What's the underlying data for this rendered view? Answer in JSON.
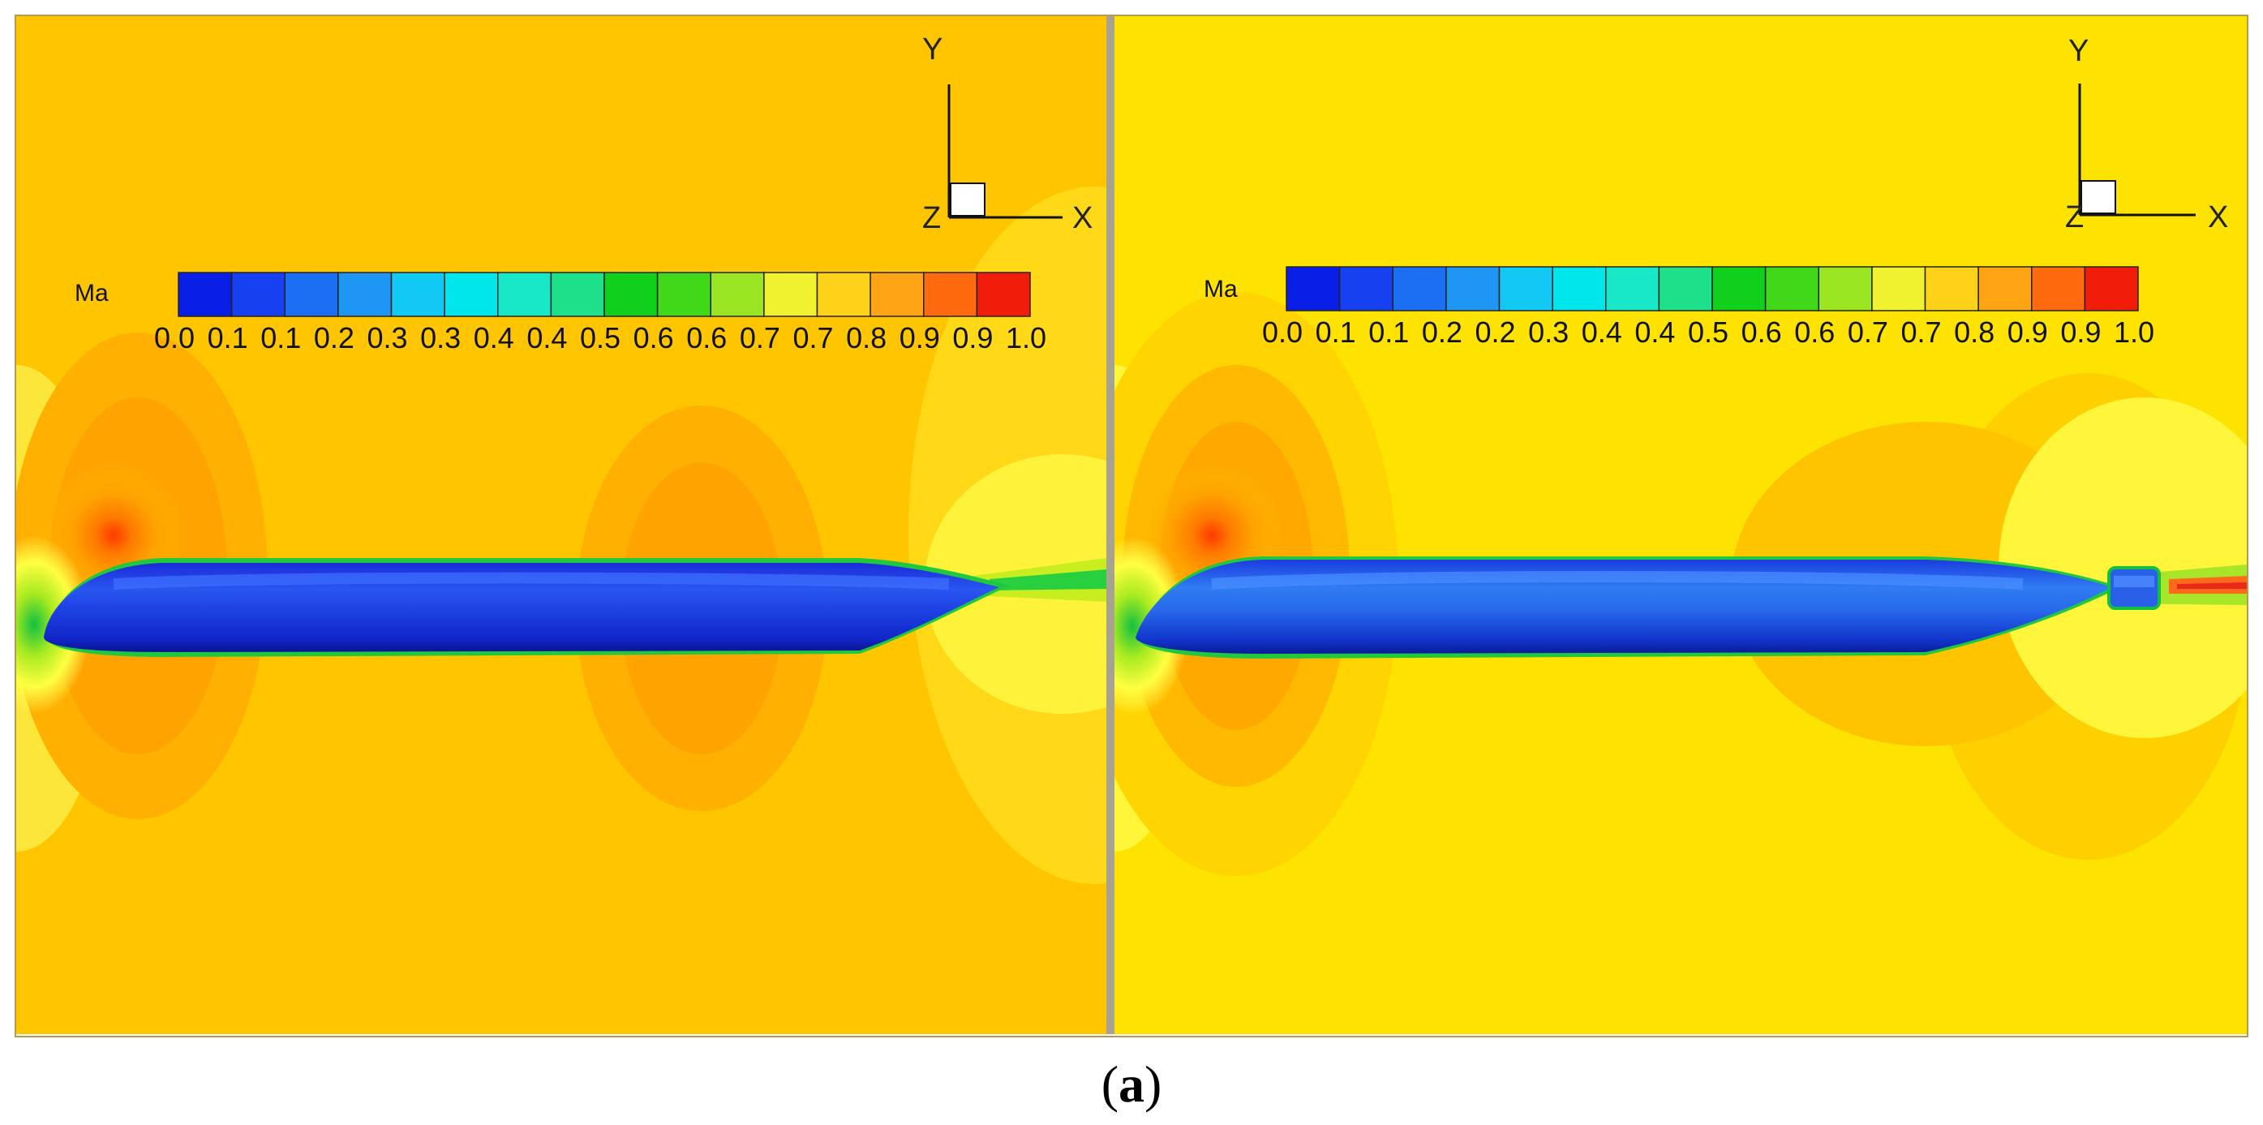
{
  "caption": {
    "open": "(",
    "letter": "a",
    "close": ")"
  },
  "colors": {
    "background_left": "#ffc600",
    "background_right": "#fee200",
    "low": "#1533ee",
    "high": "#ee1c00"
  },
  "panels": [
    {
      "id": "left",
      "colorbar": {
        "label": "Ma",
        "ticks": [
          "0.0",
          "0.1",
          "0.1",
          "0.2",
          "0.3",
          "0.3",
          "0.4",
          "0.4",
          "0.5",
          "0.6",
          "0.6",
          "0.7",
          "0.7",
          "0.8",
          "0.9",
          "0.9",
          "1.0"
        ],
        "range": [
          0.0,
          1.0
        ],
        "levels": 16
      },
      "axes": {
        "x": "X",
        "y": "Y",
        "z": "Z"
      },
      "body": "hull without propeller"
    },
    {
      "id": "right",
      "colorbar": {
        "label": "Ma",
        "ticks": [
          "0.0",
          "0.1",
          "0.1",
          "0.2",
          "0.2",
          "0.3",
          "0.4",
          "0.4",
          "0.5",
          "0.6",
          "0.6",
          "0.7",
          "0.7",
          "0.8",
          "0.9",
          "0.9",
          "1.0"
        ],
        "range": [
          0.0,
          1.0
        ],
        "levels": 16
      },
      "axes": {
        "x": "X",
        "y": "Y",
        "z": "Z"
      },
      "body": "hull with propeller"
    }
  ]
}
